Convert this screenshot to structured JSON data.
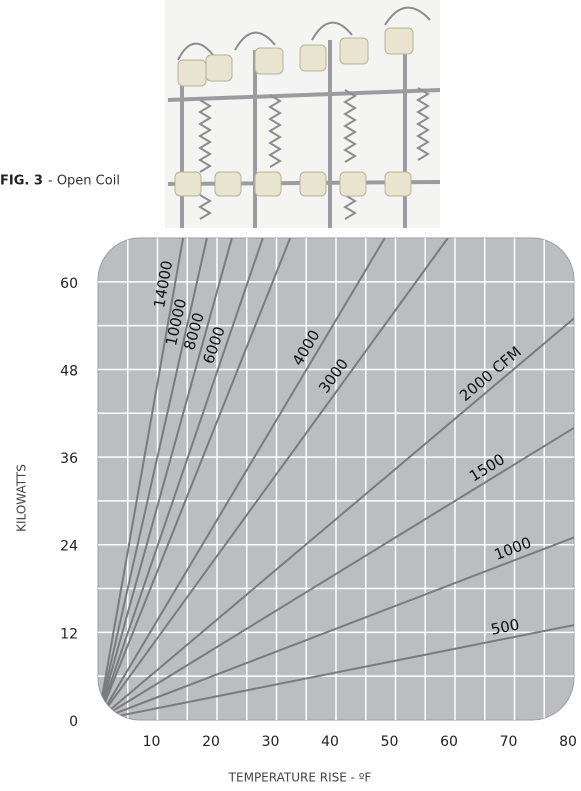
{
  "figure": {
    "label": "FIG. 3",
    "caption": "- Open Coil"
  },
  "chart_data": {
    "type": "line",
    "xlabel": "TEMPERATURE RISE - ºF",
    "ylabel": "KILOWATTS",
    "xlim": [
      0,
      80
    ],
    "ylim": [
      0,
      66
    ],
    "xticks": [
      10,
      20,
      30,
      40,
      50,
      60,
      70,
      80
    ],
    "yticks": [
      0,
      12,
      24,
      36,
      48,
      60
    ],
    "xgrid": [
      5,
      10,
      15,
      20,
      25,
      30,
      35,
      40,
      45,
      50,
      55,
      60,
      65,
      70,
      75
    ],
    "ygrid": [
      6,
      12,
      18,
      24,
      30,
      36,
      42,
      48,
      54,
      60
    ],
    "grid": true,
    "color": "#7a7b7e",
    "series": [
      {
        "name": "14000",
        "x": [
          0,
          14.3
        ],
        "values": [
          0,
          66
        ]
      },
      {
        "name": "10000",
        "x": [
          0,
          18.3
        ],
        "values": [
          0,
          66
        ]
      },
      {
        "name": "8000",
        "x": [
          0,
          22.5
        ],
        "values": [
          0,
          66
        ]
      },
      {
        "name": "6000",
        "x": [
          0,
          27.7
        ],
        "values": [
          0,
          66
        ]
      },
      {
        "name": null,
        "x": [
          0,
          32.3
        ],
        "values": [
          0,
          66
        ]
      },
      {
        "name": "4000",
        "x": [
          0,
          48.2
        ],
        "values": [
          0,
          66
        ]
      },
      {
        "name": "3000",
        "x": [
          0,
          58.8
        ],
        "values": [
          0,
          66
        ]
      },
      {
        "name": "2000 CFM",
        "x": [
          0,
          80
        ],
        "values": [
          0,
          55
        ]
      },
      {
        "name": "1500",
        "x": [
          0,
          80
        ],
        "values": [
          0,
          40
        ]
      },
      {
        "name": "1000",
        "x": [
          0,
          80
        ],
        "values": [
          0,
          25
        ]
      },
      {
        "name": "500",
        "x": [
          0,
          80
        ],
        "values": [
          0,
          13
        ]
      }
    ]
  }
}
